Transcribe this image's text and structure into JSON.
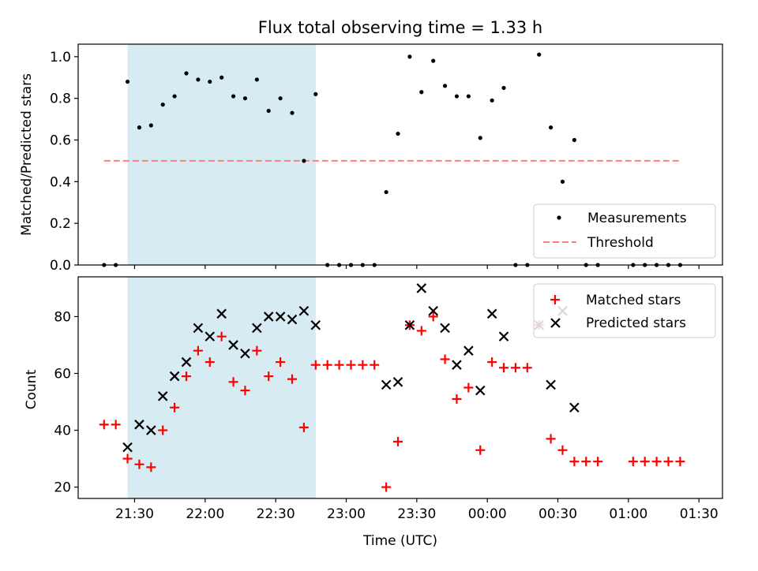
{
  "colors": {
    "shade": "#add8e6",
    "matched": "#ff0000",
    "predicted": "#000000",
    "threshold": "#ff7f7f",
    "points": "#000000"
  },
  "chart_data": [
    {
      "type": "scatter",
      "title": "Flux total observing time = 1.33 h",
      "xlabel": "",
      "ylabel": "Matched/Predicted stars",
      "xlim": [
        "21:06",
        "01:40"
      ],
      "ylim": [
        0,
        1.06
      ],
      "yticks": [
        "0.0",
        "0.2",
        "0.4",
        "0.6",
        "0.8",
        "1.0"
      ],
      "shaded_span": [
        "21:27",
        "22:47"
      ],
      "legend": {
        "position": "lower-right",
        "entries": [
          "Measurements",
          "Threshold"
        ]
      },
      "threshold": {
        "name": "Threshold",
        "value": 0.5,
        "x_range": [
          "21:17",
          "01:22"
        ]
      },
      "series": [
        {
          "name": "Measurements",
          "marker": "dot",
          "points": [
            [
              "21:17",
              0.0
            ],
            [
              "21:22",
              0.0
            ],
            [
              "21:27",
              0.88
            ],
            [
              "21:32",
              0.66
            ],
            [
              "21:37",
              0.67
            ],
            [
              "21:42",
              0.77
            ],
            [
              "21:47",
              0.81
            ],
            [
              "21:52",
              0.92
            ],
            [
              "21:57",
              0.89
            ],
            [
              "22:02",
              0.88
            ],
            [
              "22:07",
              0.9
            ],
            [
              "22:12",
              0.81
            ],
            [
              "22:17",
              0.8
            ],
            [
              "22:22",
              0.89
            ],
            [
              "22:27",
              0.74
            ],
            [
              "22:32",
              0.8
            ],
            [
              "22:37",
              0.73
            ],
            [
              "22:42",
              0.5
            ],
            [
              "22:47",
              0.82
            ],
            [
              "22:52",
              0.0
            ],
            [
              "22:57",
              0.0
            ],
            [
              "23:02",
              0.0
            ],
            [
              "23:07",
              0.0
            ],
            [
              "23:12",
              0.0
            ],
            [
              "23:17",
              0.35
            ],
            [
              "23:22",
              0.63
            ],
            [
              "23:27",
              1.0
            ],
            [
              "23:32",
              0.83
            ],
            [
              "23:37",
              0.98
            ],
            [
              "23:42",
              0.86
            ],
            [
              "23:47",
              0.81
            ],
            [
              "23:52",
              0.81
            ],
            [
              "23:57",
              0.61
            ],
            [
              "00:02",
              0.79
            ],
            [
              "00:07",
              0.85
            ],
            [
              "00:12",
              0.0
            ],
            [
              "00:17",
              0.0
            ],
            [
              "00:22",
              1.01
            ],
            [
              "00:27",
              0.66
            ],
            [
              "00:32",
              0.4
            ],
            [
              "00:37",
              0.6
            ],
            [
              "00:42",
              0.0
            ],
            [
              "00:47",
              0.0
            ],
            [
              "01:02",
              0.0
            ],
            [
              "01:07",
              0.0
            ],
            [
              "01:12",
              0.0
            ],
            [
              "01:17",
              0.0
            ],
            [
              "01:22",
              0.0
            ]
          ]
        }
      ]
    },
    {
      "type": "scatter",
      "title": "",
      "xlabel": "Time (UTC)",
      "ylabel": "Count",
      "xlim": [
        "21:06",
        "01:40"
      ],
      "ylim": [
        16,
        94
      ],
      "yticks": [
        "20",
        "40",
        "60",
        "80"
      ],
      "xticks": [
        "21:30",
        "22:00",
        "22:30",
        "23:00",
        "23:30",
        "00:00",
        "00:30",
        "01:00",
        "01:30"
      ],
      "shaded_span": [
        "21:27",
        "22:47"
      ],
      "legend": {
        "position": "upper-right",
        "entries": [
          "Matched stars",
          "Predicted stars"
        ]
      },
      "series": [
        {
          "name": "Matched stars",
          "marker": "plus",
          "points": [
            [
              "21:17",
              42
            ],
            [
              "21:22",
              42
            ],
            [
              "21:27",
              30
            ],
            [
              "21:32",
              28
            ],
            [
              "21:37",
              27
            ],
            [
              "21:42",
              40
            ],
            [
              "21:47",
              48
            ],
            [
              "21:52",
              59
            ],
            [
              "21:57",
              68
            ],
            [
              "22:02",
              64
            ],
            [
              "22:07",
              73
            ],
            [
              "22:12",
              57
            ],
            [
              "22:17",
              54
            ],
            [
              "22:22",
              68
            ],
            [
              "22:27",
              59
            ],
            [
              "22:32",
              64
            ],
            [
              "22:37",
              58
            ],
            [
              "22:42",
              41
            ],
            [
              "22:47",
              63
            ],
            [
              "22:52",
              63
            ],
            [
              "22:57",
              63
            ],
            [
              "23:02",
              63
            ],
            [
              "23:07",
              63
            ],
            [
              "23:12",
              63
            ],
            [
              "23:17",
              20
            ],
            [
              "23:22",
              36
            ],
            [
              "23:27",
              77
            ],
            [
              "23:32",
              75
            ],
            [
              "23:37",
              80
            ],
            [
              "23:42",
              65
            ],
            [
              "23:47",
              51
            ],
            [
              "23:52",
              55
            ],
            [
              "23:57",
              33
            ],
            [
              "00:02",
              64
            ],
            [
              "00:07",
              62
            ],
            [
              "00:12",
              62
            ],
            [
              "00:17",
              62
            ],
            [
              "00:22",
              77
            ],
            [
              "00:27",
              37
            ],
            [
              "00:32",
              33
            ],
            [
              "00:37",
              29
            ],
            [
              "00:42",
              29
            ],
            [
              "00:47",
              29
            ],
            [
              "01:02",
              29
            ],
            [
              "01:07",
              29
            ],
            [
              "01:12",
              29
            ],
            [
              "01:17",
              29
            ],
            [
              "01:22",
              29
            ]
          ]
        },
        {
          "name": "Predicted stars",
          "marker": "x",
          "points": [
            [
              "21:27",
              34
            ],
            [
              "21:32",
              42
            ],
            [
              "21:37",
              40
            ],
            [
              "21:42",
              52
            ],
            [
              "21:47",
              59
            ],
            [
              "21:52",
              64
            ],
            [
              "21:57",
              76
            ],
            [
              "22:02",
              73
            ],
            [
              "22:07",
              81
            ],
            [
              "22:12",
              70
            ],
            [
              "22:17",
              67
            ],
            [
              "22:22",
              76
            ],
            [
              "22:27",
              80
            ],
            [
              "22:32",
              80
            ],
            [
              "22:37",
              79
            ],
            [
              "22:42",
              82
            ],
            [
              "22:47",
              77
            ],
            [
              "23:17",
              56
            ],
            [
              "23:22",
              57
            ],
            [
              "23:27",
              77
            ],
            [
              "23:32",
              90
            ],
            [
              "23:37",
              82
            ],
            [
              "23:42",
              76
            ],
            [
              "23:47",
              63
            ],
            [
              "23:52",
              68
            ],
            [
              "23:57",
              54
            ],
            [
              "00:02",
              81
            ],
            [
              "00:07",
              73
            ],
            [
              "00:22",
              77
            ],
            [
              "00:27",
              56
            ],
            [
              "00:32",
              82
            ],
            [
              "00:37",
              48
            ]
          ]
        }
      ]
    }
  ]
}
